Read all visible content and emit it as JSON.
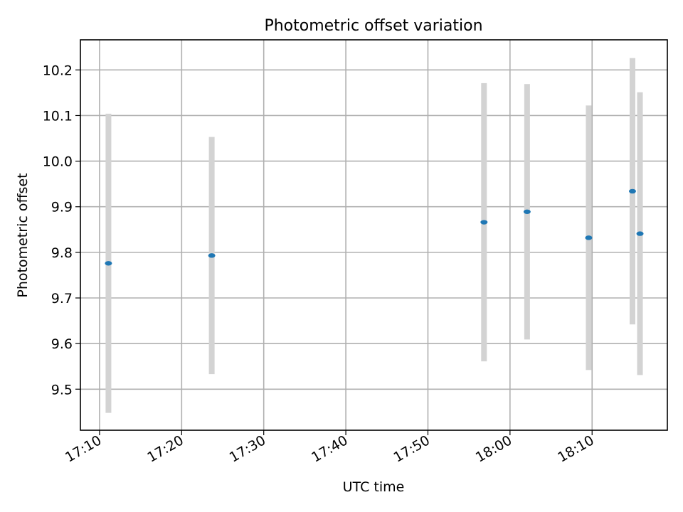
{
  "chart_data": {
    "type": "scatter",
    "title": "Photometric offset variation",
    "xlabel": "UTC time",
    "ylabel": "Photometric offset",
    "x_axis_kind": "time",
    "xlim": [
      "17:07:40",
      "18:19:10"
    ],
    "ylim": [
      9.41,
      10.266
    ],
    "x_ticks": [
      "17:10",
      "17:20",
      "17:30",
      "17:40",
      "17:50",
      "18:00",
      "18:10"
    ],
    "x_tick_values": [
      "17:10:00",
      "17:20:00",
      "17:30:00",
      "17:40:00",
      "17:50:00",
      "18:00:00",
      "18:10:00"
    ],
    "y_ticks": [
      "9.5",
      "9.6",
      "9.7",
      "9.8",
      "9.9",
      "10.0",
      "10.1",
      "10.2"
    ],
    "y_tick_values": [
      9.5,
      9.6,
      9.7,
      9.8,
      9.9,
      10.0,
      10.1,
      10.2
    ],
    "grid": true,
    "colors": {
      "marker": "#1f77b4",
      "errorbar": "#d3d3d3"
    },
    "series": [
      {
        "points": [
          {
            "x": "17:11:05",
            "y": 9.776,
            "yerr": 0.328
          },
          {
            "x": "17:23:40",
            "y": 9.793,
            "yerr": 0.26
          },
          {
            "x": "17:56:50",
            "y": 9.866,
            "yerr": 0.305
          },
          {
            "x": "18:02:05",
            "y": 9.889,
            "yerr": 0.28
          },
          {
            "x": "18:09:35",
            "y": 9.832,
            "yerr": 0.29
          },
          {
            "x": "18:14:55",
            "y": 9.934,
            "yerr": 0.292
          },
          {
            "x": "18:15:50",
            "y": 9.841,
            "yerr": 0.31
          }
        ]
      }
    ]
  }
}
